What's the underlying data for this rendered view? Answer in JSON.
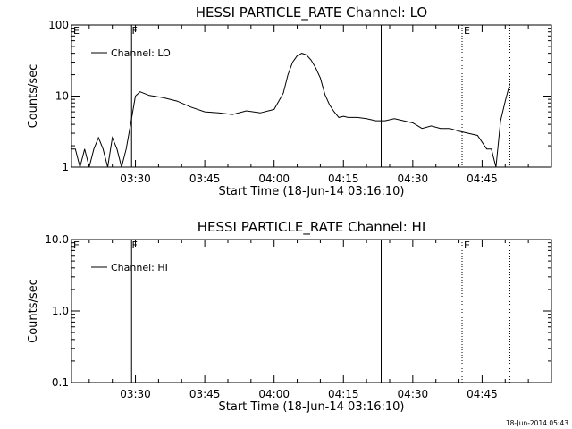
{
  "footer_stamp": "18-Jun-2014 05:43",
  "chart_data": [
    {
      "type": "line",
      "title": "HESSI PARTICLE_RATE Channel: LO",
      "xlabel": "Start Time (18-Jun-14 03:16:10)",
      "ylabel": "Counts/sec",
      "yscale": "log",
      "ylim": [
        1,
        100
      ],
      "y_ticks": [
        {
          "value": 1,
          "label": "1"
        },
        {
          "value": 10,
          "label": "10"
        },
        {
          "value": 100,
          "label": "100"
        }
      ],
      "xlim": [
        "03:16:10",
        "05:00:00"
      ],
      "x_ticks": [
        "03:30",
        "03:45",
        "04:00",
        "04:15",
        "04:30",
        "04:45"
      ],
      "legend": {
        "position": "top-left",
        "entries": [
          "Channel: LO"
        ]
      },
      "markers": [
        {
          "label": "E",
          "time": "03:16:10",
          "style": "dotted"
        },
        {
          "label": "F",
          "time": "03:28:50",
          "style": "dotted"
        },
        {
          "label": "",
          "time": "03:29:10",
          "style": "solid"
        },
        {
          "label": "",
          "time": "04:23:10",
          "style": "solid"
        },
        {
          "label": "E",
          "time": "04:40:40",
          "style": "dotted"
        },
        {
          "label": "",
          "time": "04:51:00",
          "style": "dotted"
        }
      ],
      "series": [
        {
          "name": "Channel: LO",
          "x": [
            "03:16:10",
            "03:17:00",
            "03:18:00",
            "03:19:00",
            "03:20:00",
            "03:21:00",
            "03:22:00",
            "03:23:00",
            "03:24:00",
            "03:25:00",
            "03:26:00",
            "03:27:00",
            "03:28:00",
            "03:29:00",
            "03:30:00",
            "03:31:00",
            "03:33:00",
            "03:36:00",
            "03:39:00",
            "03:42:00",
            "03:45:00",
            "03:48:00",
            "03:51:00",
            "03:54:00",
            "03:57:00",
            "04:00:00",
            "04:02:00",
            "04:03:00",
            "04:04:00",
            "04:05:00",
            "04:06:00",
            "04:07:00",
            "04:08:00",
            "04:09:00",
            "04:10:00",
            "04:11:00",
            "04:12:00",
            "04:13:00",
            "04:14:00",
            "04:15:00",
            "04:16:00",
            "04:18:00",
            "04:20:00",
            "04:22:00",
            "04:24:00",
            "04:26:00",
            "04:28:00",
            "04:30:00",
            "04:32:00",
            "04:34:00",
            "04:36:00",
            "04:38:00",
            "04:40:00",
            "04:42:00",
            "04:44:00",
            "04:46:00",
            "04:47:00",
            "04:48:00",
            "04:49:00",
            "04:50:00",
            "04:51:00"
          ],
          "values": [
            1.8,
            1.8,
            1.0,
            1.8,
            1.0,
            1.8,
            2.6,
            1.8,
            1.0,
            2.6,
            1.8,
            1.0,
            1.8,
            4.2,
            10.0,
            11.5,
            10.2,
            9.5,
            8.5,
            7.0,
            6.0,
            5.8,
            5.5,
            6.2,
            5.8,
            6.5,
            11.0,
            20.0,
            30.0,
            37.0,
            40.0,
            38.0,
            32.0,
            25.0,
            18.0,
            10.5,
            7.5,
            6.0,
            5.0,
            5.2,
            5.0,
            5.0,
            4.8,
            4.5,
            4.5,
            4.8,
            4.5,
            4.2,
            3.5,
            3.8,
            3.5,
            3.5,
            3.2,
            3.0,
            2.8,
            1.8,
            1.8,
            1.0,
            4.5,
            8.5,
            15.0
          ]
        }
      ]
    },
    {
      "type": "line",
      "title": "HESSI PARTICLE_RATE Channel: HI",
      "xlabel": "Start Time (18-Jun-14 03:16:10)",
      "ylabel": "Counts/sec",
      "yscale": "log",
      "ylim": [
        0.1,
        10
      ],
      "y_ticks": [
        {
          "value": 0.1,
          "label": "0.1"
        },
        {
          "value": 1,
          "label": "1.0"
        },
        {
          "value": 10,
          "label": "10.0"
        }
      ],
      "xlim": [
        "03:16:10",
        "05:00:00"
      ],
      "x_ticks": [
        "03:30",
        "03:45",
        "04:00",
        "04:15",
        "04:30",
        "04:45"
      ],
      "legend": {
        "position": "top-left",
        "entries": [
          "Channel: HI"
        ]
      },
      "markers": [
        {
          "label": "E",
          "time": "03:16:10",
          "style": "dotted"
        },
        {
          "label": "F",
          "time": "03:28:50",
          "style": "dotted"
        },
        {
          "label": "",
          "time": "03:29:10",
          "style": "solid"
        },
        {
          "label": "",
          "time": "04:23:10",
          "style": "solid"
        },
        {
          "label": "E",
          "time": "04:40:40",
          "style": "dotted"
        },
        {
          "label": "",
          "time": "04:51:00",
          "style": "dotted"
        }
      ],
      "series": [
        {
          "name": "Channel: HI",
          "x": [],
          "values": []
        }
      ]
    }
  ]
}
